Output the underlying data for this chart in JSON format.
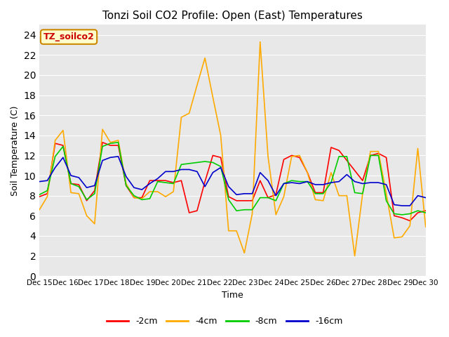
{
  "title": "Tonzi Soil CO2 Profile: Open (East) Temperatures",
  "xlabel": "Time",
  "ylabel": "Soil Temperature (C)",
  "ylim": [
    0,
    25
  ],
  "yticks": [
    0,
    2,
    4,
    6,
    8,
    10,
    12,
    14,
    16,
    18,
    20,
    22,
    24
  ],
  "bg_color": "#e8e8e8",
  "fig_color": "#ffffff",
  "label_box_text": "TZ_soilco2",
  "label_box_facecolor": "#ffffcc",
  "label_box_edgecolor": "#cc8800",
  "label_text_color": "#cc0000",
  "legend_labels": [
    "-2cm",
    "-4cm",
    "-8cm",
    "-16cm"
  ],
  "line_colors": [
    "#ff0000",
    "#ffaa00",
    "#00cc00",
    "#0000cc"
  ],
  "x_tick_labels": [
    "Dec 15",
    "Dec 16",
    "Dec 17",
    "Dec 18",
    "Dec 19",
    "Dec 20",
    "Dec 21",
    "Dec 22",
    "Dec 23",
    "Dec 24",
    "Dec 25",
    "Dec 26",
    "Dec 27",
    "Dec 28",
    "Dec 29",
    "Dec 30"
  ],
  "cm2": [
    7.9,
    8.2,
    13.2,
    13.0,
    9.2,
    9.1,
    7.5,
    8.5,
    13.3,
    13.0,
    13.0,
    9.0,
    7.8,
    7.8,
    9.5,
    9.5,
    9.5,
    9.3,
    9.5,
    6.3,
    6.5,
    9.4,
    12.0,
    11.8,
    7.9,
    7.5,
    7.5,
    7.5,
    9.5,
    7.8,
    8.1,
    11.6,
    12.0,
    11.8,
    10.3,
    8.3,
    8.3,
    12.8,
    12.5,
    11.5,
    10.5,
    9.5,
    12.0,
    12.2,
    11.8,
    6.0,
    5.8,
    5.5,
    6.3,
    6.5
  ],
  "cm4": [
    6.6,
    7.9,
    13.5,
    14.5,
    8.3,
    8.2,
    6.0,
    5.2,
    14.6,
    13.3,
    13.5,
    9.2,
    7.8,
    7.7,
    8.4,
    8.4,
    7.9,
    8.4,
    15.8,
    16.2,
    19.0,
    21.7,
    17.8,
    14.0,
    4.5,
    4.5,
    2.3,
    6.2,
    23.3,
    11.9,
    6.1,
    7.9,
    11.9,
    12.0,
    10.3,
    7.6,
    7.5,
    10.3,
    8.0,
    8.0,
    2.0,
    8.2,
    12.4,
    12.4,
    8.2,
    3.8,
    3.9,
    5.0,
    12.7,
    4.9
  ],
  "cm8": [
    8.1,
    8.5,
    11.9,
    12.9,
    9.2,
    8.9,
    7.6,
    8.2,
    12.9,
    13.2,
    13.3,
    9.0,
    8.0,
    7.6,
    7.7,
    9.4,
    9.3,
    9.2,
    11.1,
    11.2,
    11.3,
    11.4,
    11.3,
    10.9,
    7.6,
    6.5,
    6.6,
    6.6,
    7.8,
    7.8,
    7.5,
    9.2,
    9.5,
    9.4,
    9.4,
    8.2,
    8.2,
    9.3,
    11.9,
    11.9,
    8.3,
    8.2,
    12.0,
    12.0,
    7.5,
    6.2,
    6.1,
    6.2,
    6.5,
    6.3
  ],
  "cm16": [
    9.4,
    9.5,
    10.8,
    11.8,
    10.0,
    9.8,
    8.8,
    9.0,
    11.5,
    11.8,
    11.9,
    9.9,
    8.8,
    8.6,
    9.2,
    9.7,
    10.4,
    10.4,
    10.6,
    10.6,
    10.4,
    8.9,
    10.3,
    10.8,
    8.9,
    8.1,
    8.2,
    8.2,
    10.3,
    9.5,
    8.0,
    9.2,
    9.3,
    9.2,
    9.4,
    9.1,
    9.1,
    9.3,
    9.4,
    10.1,
    9.4,
    9.2,
    9.3,
    9.3,
    9.1,
    7.1,
    7.0,
    7.0,
    8.0,
    7.8
  ]
}
